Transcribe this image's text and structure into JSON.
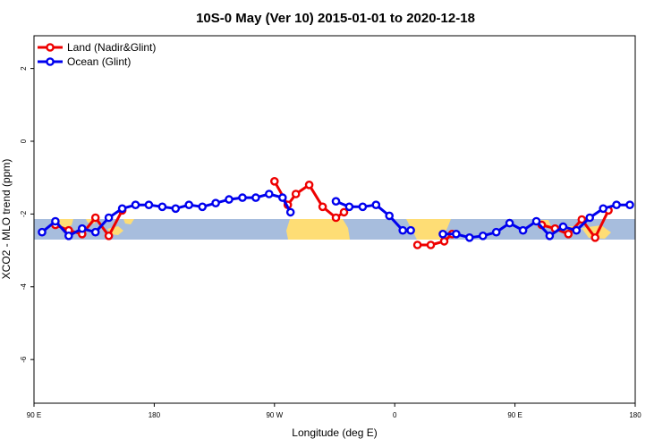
{
  "chart_data": {
    "type": "line",
    "title": "10S-0 May (Ver 10)   2015-01-01 to 2020-12-18",
    "xlabel": "Longitude (deg E)",
    "ylabel": "XCO2 - MLO trend (ppm)",
    "xlim": [
      90,
      540
    ],
    "ylim": [
      -7.2,
      2.9
    ],
    "x_ticks": [
      {
        "value": 90,
        "label": "90 E"
      },
      {
        "value": 180,
        "label": "180"
      },
      {
        "value": 270,
        "label": "90 W"
      },
      {
        "value": 360,
        "label": "0"
      },
      {
        "value": 450,
        "label": "90 E"
      },
      {
        "value": 540,
        "label": "180"
      }
    ],
    "y_ticks": [
      {
        "value": 2,
        "label": "2"
      },
      {
        "value": 0,
        "label": "0"
      },
      {
        "value": -2,
        "label": "-2"
      },
      {
        "value": -4,
        "label": "-4"
      },
      {
        "value": -6,
        "label": "-6"
      }
    ],
    "legend_position": "top-left",
    "grid": false,
    "map_band": {
      "lat_range": "10S-0",
      "ocean_color": "#a7bddd",
      "land_color": "#fedd75"
    },
    "series": [
      {
        "name": "Land (Nadir&Glint)",
        "color": "#ee0000",
        "segments": [
          [
            [
              106,
              -2.3
            ],
            [
              116,
              -2.45
            ],
            [
              126,
              -2.55
            ],
            [
              136,
              -2.1
            ],
            [
              146,
              -2.6
            ],
            [
              156,
              -1.9
            ]
          ],
          [
            [
              270,
              -1.1
            ],
            [
              280,
              -1.75
            ],
            [
              286,
              -1.45
            ],
            [
              296,
              -1.2
            ],
            [
              306,
              -1.8
            ],
            [
              316,
              -2.1
            ],
            [
              322,
              -1.95
            ]
          ],
          [
            [
              377,
              -2.85
            ],
            [
              387,
              -2.85
            ],
            [
              397,
              -2.75
            ],
            [
              403,
              -2.55
            ]
          ],
          [
            [
              470,
              -2.3
            ],
            [
              480,
              -2.4
            ],
            [
              490,
              -2.55
            ],
            [
              500,
              -2.15
            ],
            [
              510,
              -2.65
            ],
            [
              520,
              -1.9
            ]
          ]
        ]
      },
      {
        "name": "Ocean (Glint)",
        "color": "#0000ee",
        "segments": [
          [
            [
              96,
              -2.5
            ],
            [
              106,
              -2.2
            ],
            [
              116,
              -2.6
            ],
            [
              126,
              -2.4
            ],
            [
              136,
              -2.5
            ],
            [
              146,
              -2.1
            ],
            [
              156,
              -1.85
            ],
            [
              166,
              -1.75
            ],
            [
              176,
              -1.75
            ],
            [
              186,
              -1.8
            ],
            [
              196,
              -1.85
            ],
            [
              206,
              -1.75
            ],
            [
              216,
              -1.8
            ],
            [
              226,
              -1.7
            ],
            [
              236,
              -1.6
            ],
            [
              246,
              -1.55
            ],
            [
              256,
              -1.55
            ],
            [
              266,
              -1.45
            ],
            [
              276,
              -1.55
            ],
            [
              282,
              -1.95
            ]
          ],
          [
            [
              316,
              -1.65
            ],
            [
              326,
              -1.8
            ],
            [
              336,
              -1.8
            ],
            [
              346,
              -1.75
            ],
            [
              356,
              -2.05
            ],
            [
              366,
              -2.45
            ],
            [
              372,
              -2.45
            ]
          ],
          [
            [
              396,
              -2.55
            ],
            [
              406,
              -2.55
            ],
            [
              416,
              -2.65
            ],
            [
              426,
              -2.6
            ],
            [
              436,
              -2.5
            ],
            [
              446,
              -2.25
            ],
            [
              456,
              -2.45
            ],
            [
              466,
              -2.2
            ],
            [
              476,
              -2.6
            ],
            [
              486,
              -2.35
            ],
            [
              496,
              -2.45
            ],
            [
              506,
              -2.1
            ],
            [
              516,
              -1.85
            ],
            [
              526,
              -1.75
            ],
            [
              536,
              -1.75
            ]
          ]
        ]
      }
    ]
  }
}
